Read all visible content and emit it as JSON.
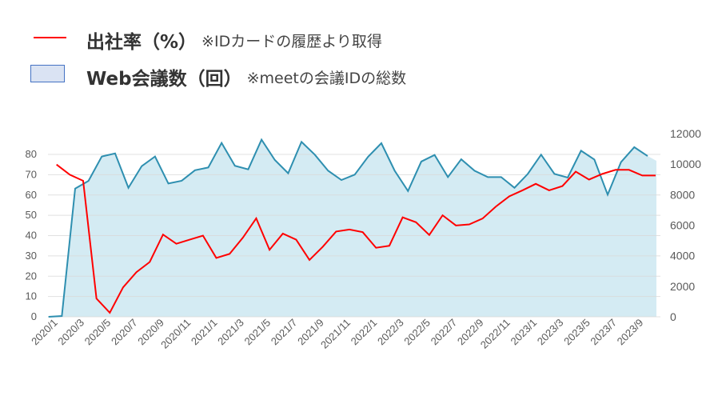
{
  "legend": {
    "series1_title": "出社率（%）",
    "series1_note": "※IDカードの履歴より取得",
    "series2_title": "Web会議数（回）",
    "series2_note": "※meetの会議IDの総数"
  },
  "chart_data": {
    "type": "line+area",
    "categories": [
      "2020/1",
      "2020/2",
      "2020/3",
      "2020/4",
      "2020/5",
      "2020/6",
      "2020/7",
      "2020/8",
      "2020/9",
      "2020/10",
      "2020/11",
      "2020/12",
      "2021/1",
      "2021/2",
      "2021/3",
      "2021/4",
      "2021/5",
      "2021/6",
      "2021/7",
      "2021/8",
      "2021/9",
      "2021/10",
      "2021/11",
      "2021/12",
      "2022/1",
      "2022/2",
      "2022/3",
      "2022/4",
      "2022/5",
      "2022/6",
      "2022/7",
      "2022/8",
      "2022/9",
      "2022/10",
      "2022/11",
      "2022/12",
      "2023/1",
      "2023/2",
      "2023/3",
      "2023/4",
      "2023/5",
      "2023/6",
      "2023/7",
      "2023/8",
      "2023/9",
      "2023/10"
    ],
    "x_tick_labels": [
      "2020/1",
      "2020/3",
      "2020/5",
      "2020/7",
      "2020/9",
      "2020/11",
      "2021/1",
      "2021/3",
      "2021/5",
      "2021/7",
      "2021/9",
      "2021/11",
      "2022/1",
      "2022/3",
      "2022/5",
      "2022/7",
      "2022/9",
      "2022/11",
      "2023/1",
      "2023/3",
      "2023/5",
      "2023/7",
      "2023/9"
    ],
    "series": [
      {
        "name": "出社率（%）",
        "type": "line",
        "axis": "left",
        "color": "#ff0000",
        "values": [
          75,
          70,
          67,
          9,
          2,
          14.5,
          22,
          27,
          40.5,
          36,
          38,
          40,
          29,
          31,
          39,
          48.5,
          33,
          41,
          38,
          28,
          34.5,
          42,
          43,
          41.7,
          34,
          35,
          49,
          46.6,
          40.3,
          50,
          45,
          45.5,
          48.4,
          54.3,
          59.3,
          62.3,
          65.5,
          62.3,
          64.4,
          71.5,
          67.6,
          70.4,
          72.4,
          72.4,
          69.6,
          69.6
        ]
      },
      {
        "name": "Web会議数（回）",
        "type": "area",
        "axis": "right",
        "color": "#2e8fb0",
        "fill": "#d4ebf3",
        "values": [
          0,
          50,
          8400,
          8900,
          10500,
          10700,
          8450,
          9870,
          10500,
          8730,
          8910,
          9600,
          9780,
          11390,
          9890,
          9660,
          11600,
          10270,
          9400,
          11460,
          10620,
          9570,
          8960,
          9310,
          10480,
          11370,
          9570,
          8240,
          10170,
          10600,
          9150,
          10320,
          9570,
          9150,
          9150,
          8450,
          9360,
          10620,
          9360,
          9120,
          10880,
          10300,
          8000,
          10130,
          11110,
          10530
        ]
      }
    ],
    "y_left": {
      "ticks": [
        "0",
        "10",
        "20",
        "30",
        "40",
        "50",
        "60",
        "70",
        "80"
      ],
      "range": [
        0,
        80
      ]
    },
    "y_right": {
      "ticks": [
        "0",
        "2000",
        "4000",
        "6000",
        "8000",
        "10000",
        "12000"
      ],
      "range": [
        0,
        12000
      ]
    },
    "grid": true,
    "legend_position": "top-left"
  }
}
